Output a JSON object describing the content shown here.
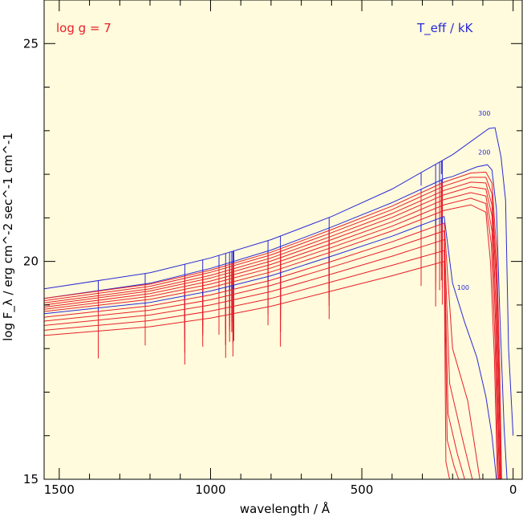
{
  "colors": {
    "background": "#fffbdc",
    "red_series": "#e8202a",
    "blue_series": "#2a2ad8",
    "axis": "#000000"
  },
  "annotations": {
    "gravity": "log g = 7",
    "teff_unit": "T_eff / kK"
  },
  "chart_data": {
    "type": "line",
    "title": "",
    "xlabel": "wavelength / Å",
    "ylabel": "log F_λ / erg cm^-2 sec^-1 cm^-1",
    "xlim": [
      1550,
      -30
    ],
    "ylim": [
      15,
      26
    ],
    "x_reversed": true,
    "x_ticks": [
      1500,
      1000,
      500,
      0
    ],
    "y_ticks": [
      15,
      20,
      25
    ],
    "grid": false,
    "legend": "none",
    "labels_on_curves": [
      "300",
      "200",
      "100"
    ],
    "absorption_lines_angstrom": [
      1550,
      1371,
      1216,
      1085,
      1026,
      972,
      950,
      937,
      930,
      926,
      923,
      810,
      769,
      608,
      304,
      256,
      243,
      237,
      234
    ],
    "series": [
      {
        "color": "blue",
        "label": "300",
        "points": [
          [
            1550,
            19.37
          ],
          [
            1200,
            19.74
          ],
          [
            1000,
            20.08
          ],
          [
            800,
            20.5
          ],
          [
            600,
            21.03
          ],
          [
            400,
            21.66
          ],
          [
            200,
            22.45
          ],
          [
            80,
            23.05
          ],
          [
            60,
            23.07
          ],
          [
            40,
            22.4
          ],
          [
            25,
            21.4
          ],
          [
            15,
            18.0
          ],
          [
            0,
            16.0
          ]
        ]
      },
      {
        "color": "blue",
        "label": "200",
        "points": [
          [
            1550,
            19.15
          ],
          [
            1200,
            19.5
          ],
          [
            1000,
            19.84
          ],
          [
            800,
            20.26
          ],
          [
            600,
            20.79
          ],
          [
            400,
            21.35
          ],
          [
            228,
            21.9
          ],
          [
            200,
            21.95
          ],
          [
            120,
            22.17
          ],
          [
            85,
            22.22
          ],
          [
            70,
            22.1
          ],
          [
            55,
            21.2
          ],
          [
            45,
            19.0
          ],
          [
            30,
            16.2
          ],
          [
            20,
            15.0
          ]
        ]
      },
      {
        "color": "red",
        "label": "",
        "points": [
          [
            1550,
            19.15
          ],
          [
            1200,
            19.48
          ],
          [
            1000,
            19.8
          ],
          [
            800,
            20.21
          ],
          [
            600,
            20.73
          ],
          [
            400,
            21.27
          ],
          [
            228,
            21.82
          ],
          [
            140,
            22.03
          ],
          [
            90,
            22.05
          ],
          [
            70,
            21.8
          ],
          [
            55,
            20.3
          ],
          [
            45,
            17.8
          ],
          [
            38,
            15.0
          ]
        ]
      },
      {
        "color": "red",
        "label": "",
        "points": [
          [
            1550,
            19.1
          ],
          [
            1200,
            19.43
          ],
          [
            1000,
            19.75
          ],
          [
            800,
            20.15
          ],
          [
            600,
            20.66
          ],
          [
            400,
            21.19
          ],
          [
            228,
            21.73
          ],
          [
            140,
            21.93
          ],
          [
            90,
            21.93
          ],
          [
            70,
            21.55
          ],
          [
            55,
            19.8
          ],
          [
            45,
            17.0
          ],
          [
            40,
            15.0
          ]
        ]
      },
      {
        "color": "red",
        "label": "",
        "points": [
          [
            1550,
            19.05
          ],
          [
            1200,
            19.37
          ],
          [
            1000,
            19.68
          ],
          [
            800,
            20.08
          ],
          [
            600,
            20.58
          ],
          [
            400,
            21.1
          ],
          [
            228,
            21.63
          ],
          [
            140,
            21.82
          ],
          [
            90,
            21.8
          ],
          [
            70,
            21.3
          ],
          [
            55,
            19.4
          ],
          [
            45,
            16.3
          ],
          [
            41,
            15.0
          ]
        ]
      },
      {
        "color": "red",
        "label": "",
        "points": [
          [
            1550,
            19.0
          ],
          [
            1200,
            19.32
          ],
          [
            1000,
            19.62
          ],
          [
            800,
            20.01
          ],
          [
            600,
            20.5
          ],
          [
            400,
            21.01
          ],
          [
            228,
            21.53
          ],
          [
            140,
            21.71
          ],
          [
            90,
            21.66
          ],
          [
            70,
            21.05
          ],
          [
            57,
            19.0
          ],
          [
            47,
            16.0
          ],
          [
            43,
            15.0
          ]
        ]
      },
      {
        "color": "red",
        "label": "",
        "points": [
          [
            1550,
            18.95
          ],
          [
            1200,
            19.26
          ],
          [
            1000,
            19.55
          ],
          [
            800,
            19.93
          ],
          [
            600,
            20.41
          ],
          [
            400,
            20.91
          ],
          [
            228,
            21.42
          ],
          [
            140,
            21.58
          ],
          [
            90,
            21.5
          ],
          [
            70,
            20.7
          ],
          [
            58,
            18.6
          ],
          [
            48,
            15.6
          ],
          [
            45,
            15.0
          ]
        ]
      },
      {
        "color": "red",
        "label": "",
        "points": [
          [
            1550,
            18.9
          ],
          [
            1200,
            19.2
          ],
          [
            1000,
            19.48
          ],
          [
            800,
            19.85
          ],
          [
            600,
            20.32
          ],
          [
            400,
            20.81
          ],
          [
            228,
            21.3
          ],
          [
            140,
            21.45
          ],
          [
            90,
            21.33
          ],
          [
            72,
            20.4
          ],
          [
            60,
            18.2
          ],
          [
            50,
            15.3
          ],
          [
            48,
            15.0
          ]
        ]
      },
      {
        "color": "red",
        "label": "",
        "points": [
          [
            1550,
            18.85
          ],
          [
            1200,
            19.13
          ],
          [
            1000,
            19.4
          ],
          [
            800,
            19.76
          ],
          [
            600,
            20.22
          ],
          [
            400,
            20.7
          ],
          [
            228,
            21.17
          ],
          [
            140,
            21.3
          ],
          [
            90,
            21.13
          ],
          [
            75,
            20.0
          ],
          [
            62,
            17.8
          ],
          [
            52,
            15.0
          ]
        ]
      },
      {
        "color": "blue",
        "label": "100",
        "points": [
          [
            1550,
            18.8
          ],
          [
            1200,
            19.06
          ],
          [
            1000,
            19.32
          ],
          [
            800,
            19.67
          ],
          [
            600,
            20.12
          ],
          [
            400,
            20.58
          ],
          [
            228,
            21.03
          ],
          [
            200,
            19.5
          ],
          [
            160,
            18.6
          ],
          [
            120,
            17.8
          ],
          [
            90,
            16.9
          ],
          [
            70,
            16.0
          ],
          [
            55,
            15.0
          ]
        ]
      },
      {
        "color": "red",
        "label": "",
        "points": [
          [
            1550,
            18.72
          ],
          [
            1200,
            18.98
          ],
          [
            1000,
            19.23
          ],
          [
            800,
            19.57
          ],
          [
            600,
            20.0
          ],
          [
            400,
            20.45
          ],
          [
            228,
            20.88
          ],
          [
            200,
            18.0
          ],
          [
            150,
            16.8
          ],
          [
            110,
            15.0
          ]
        ]
      },
      {
        "color": "red",
        "label": "",
        "points": [
          [
            1550,
            18.63
          ],
          [
            1200,
            18.88
          ],
          [
            1000,
            19.12
          ],
          [
            800,
            19.45
          ],
          [
            600,
            19.87
          ],
          [
            400,
            20.3
          ],
          [
            228,
            20.7
          ],
          [
            210,
            17.2
          ],
          [
            170,
            16.0
          ],
          [
            135,
            15.0
          ]
        ]
      },
      {
        "color": "red",
        "label": "",
        "points": [
          [
            1550,
            18.53
          ],
          [
            1200,
            18.77
          ],
          [
            1000,
            19.0
          ],
          [
            800,
            19.31
          ],
          [
            600,
            19.71
          ],
          [
            400,
            20.12
          ],
          [
            228,
            20.5
          ],
          [
            215,
            16.5
          ],
          [
            185,
            15.6
          ],
          [
            160,
            15.0
          ]
        ]
      },
      {
        "color": "red",
        "label": "",
        "points": [
          [
            1550,
            18.42
          ],
          [
            1200,
            18.64
          ],
          [
            1000,
            18.86
          ],
          [
            800,
            19.15
          ],
          [
            600,
            19.53
          ],
          [
            400,
            19.91
          ],
          [
            228,
            20.25
          ],
          [
            218,
            15.9
          ],
          [
            195,
            15.3
          ],
          [
            180,
            15.0
          ]
        ]
      },
      {
        "color": "red",
        "label": "",
        "points": [
          [
            1550,
            18.3
          ],
          [
            1200,
            18.5
          ],
          [
            1000,
            18.7
          ],
          [
            800,
            18.97
          ],
          [
            600,
            19.32
          ],
          [
            400,
            19.67
          ],
          [
            228,
            20.0
          ],
          [
            222,
            15.4
          ],
          [
            210,
            15.0
          ]
        ]
      }
    ]
  }
}
